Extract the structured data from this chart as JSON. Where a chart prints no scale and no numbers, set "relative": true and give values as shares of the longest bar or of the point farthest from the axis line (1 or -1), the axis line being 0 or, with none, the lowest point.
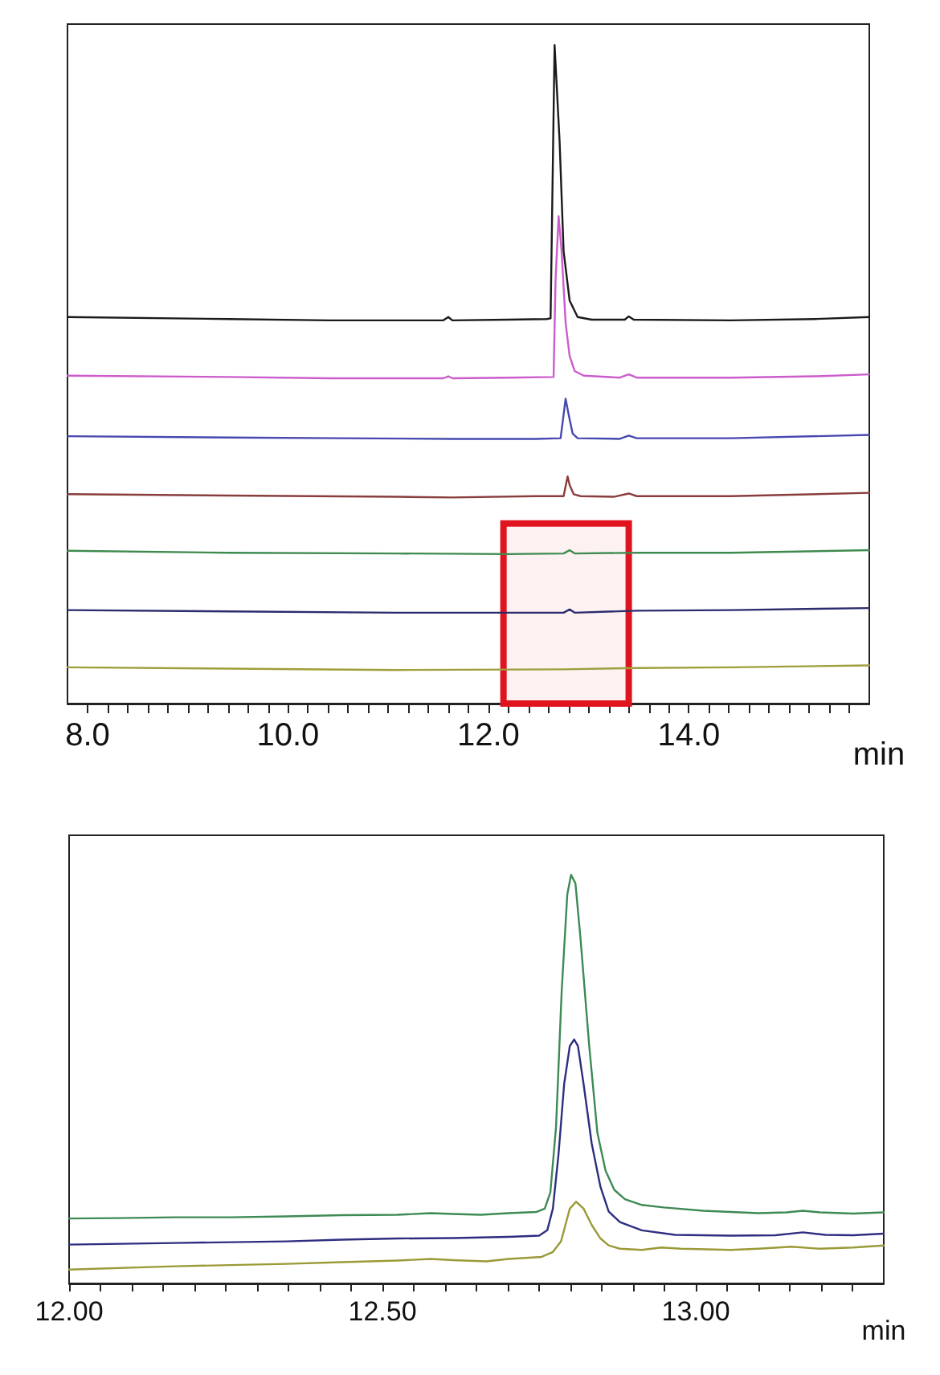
{
  "chart_data": [
    {
      "type": "line",
      "xlabel": "min",
      "relative": true,
      "tick_labels": "x",
      "marker": "none",
      "grid": false,
      "xlim": [
        7.8,
        15.8
      ],
      "xticks": [
        {
          "value": 8,
          "label": "8.0"
        },
        {
          "value": 8.2,
          "label": null
        },
        {
          "value": 8.4,
          "label": null
        },
        {
          "value": 8.6,
          "label": null
        },
        {
          "value": 8.8,
          "label": null
        },
        {
          "value": 9,
          "label": null
        },
        {
          "value": 9.2,
          "label": null
        },
        {
          "value": 9.4,
          "label": null
        },
        {
          "value": 9.6,
          "label": null
        },
        {
          "value": 9.8,
          "label": null
        },
        {
          "value": 10,
          "label": "10.0"
        },
        {
          "value": 10.2,
          "label": null
        },
        {
          "value": 10.4,
          "label": null
        },
        {
          "value": 10.6,
          "label": null
        },
        {
          "value": 10.8,
          "label": null
        },
        {
          "value": 11,
          "label": null
        },
        {
          "value": 11.2,
          "label": null
        },
        {
          "value": 11.4,
          "label": null
        },
        {
          "value": 11.6,
          "label": null
        },
        {
          "value": 11.8,
          "label": null
        },
        {
          "value": 12,
          "label": "12.0"
        },
        {
          "value": 12.2,
          "label": null
        },
        {
          "value": 12.4,
          "label": null
        },
        {
          "value": 12.6,
          "label": null
        },
        {
          "value": 12.8,
          "label": null
        },
        {
          "value": 13,
          "label": null
        },
        {
          "value": 13.2,
          "label": null
        },
        {
          "value": 13.4,
          "label": null
        },
        {
          "value": 13.6,
          "label": null
        },
        {
          "value": 13.8,
          "label": null
        },
        {
          "value": 14,
          "label": "14.0"
        },
        {
          "value": 14.2,
          "label": null
        },
        {
          "value": 14.4,
          "label": null
        },
        {
          "value": 14.6,
          "label": null
        },
        {
          "value": 14.8,
          "label": null
        },
        {
          "value": 15,
          "label": null
        },
        {
          "value": 15.2,
          "label": null
        },
        {
          "value": 15.4,
          "label": null
        },
        {
          "value": 15.6,
          "label": null
        }
      ],
      "bands": [
        {
          "axis": "x",
          "from": 12.15,
          "to": 13.4,
          "color": "#e0141e"
        }
      ],
      "series": [
        {
          "color": "#1a1a1a",
          "x": [
            7.8,
            9.41,
            10.41,
            11.36,
            11.55,
            11.6,
            11.64,
            12.19,
            12.58,
            12.62,
            12.66,
            12.71,
            12.75,
            12.81,
            12.89,
            13.03,
            13.36,
            13.4,
            13.45,
            14.42,
            15.26,
            15.8
          ],
          "values": [
            0.587,
            0.584,
            0.582,
            0.582,
            0.582,
            0.587,
            0.582,
            0.583,
            0.584,
            0.585,
            1,
            0.854,
            0.687,
            0.612,
            0.587,
            0.583,
            0.583,
            0.588,
            0.583,
            0.582,
            0.584,
            0.587
          ]
        },
        {
          "color": "#cc5ccc",
          "x": [
            7.8,
            9.41,
            10.41,
            11.55,
            11.6,
            11.64,
            12.19,
            12.65,
            12.67,
            12.7,
            12.73,
            12.77,
            12.81,
            12.86,
            12.95,
            13.31,
            13.4,
            13.48,
            14.42,
            15.26,
            15.8
          ],
          "values": [
            0.498,
            0.496,
            0.494,
            0.494,
            0.497,
            0.494,
            0.495,
            0.496,
            0.645,
            0.74,
            0.687,
            0.578,
            0.528,
            0.505,
            0.498,
            0.495,
            0.5,
            0.495,
            0.495,
            0.497,
            0.5
          ]
        },
        {
          "color": "#4848b0",
          "x": [
            7.8,
            9.41,
            10.52,
            11.64,
            12.47,
            12.72,
            12.75,
            12.77,
            12.8,
            12.84,
            12.89,
            13.31,
            13.4,
            13.48,
            14.42,
            15.8
          ],
          "values": [
            0.406,
            0.404,
            0.403,
            0.402,
            0.402,
            0.403,
            0.439,
            0.463,
            0.439,
            0.41,
            0.403,
            0.402,
            0.407,
            0.403,
            0.403,
            0.408
          ]
        },
        {
          "color": "#8a3d3d",
          "x": [
            7.8,
            9.41,
            11.08,
            11.64,
            12.47,
            12.75,
            12.77,
            12.79,
            12.81,
            12.85,
            12.92,
            13.25,
            13.4,
            13.48,
            14.42,
            15.8
          ],
          "values": [
            0.318,
            0.316,
            0.314,
            0.313,
            0.315,
            0.315,
            0.33,
            0.345,
            0.332,
            0.318,
            0.315,
            0.314,
            0.319,
            0.315,
            0.315,
            0.32
          ]
        },
        {
          "color": "#3f8a4f",
          "x": [
            7.8,
            9.41,
            11.08,
            12.19,
            12.75,
            12.81,
            12.86,
            13.48,
            14.42,
            15.8
          ],
          "values": [
            0.232,
            0.229,
            0.228,
            0.227,
            0.228,
            0.233,
            0.228,
            0.229,
            0.229,
            0.233
          ]
        },
        {
          "color": "#2b2b6e",
          "x": [
            7.8,
            9.41,
            11.08,
            12.19,
            12.75,
            12.81,
            12.86,
            13.48,
            14.42,
            15.8
          ],
          "values": [
            0.142,
            0.14,
            0.138,
            0.138,
            0.138,
            0.143,
            0.138,
            0.141,
            0.142,
            0.145
          ]
        },
        {
          "color": "#9e9e3a",
          "x": [
            7.8,
            9.41,
            11.08,
            12.75,
            13.48,
            14.42,
            15.8
          ],
          "values": [
            0.055,
            0.053,
            0.051,
            0.052,
            0.054,
            0.055,
            0.058
          ]
        }
      ]
    },
    {
      "type": "line",
      "xlabel": "min",
      "relative": true,
      "tick_labels": "x",
      "marker": "none",
      "grid": false,
      "xlim": [
        12,
        13.3
      ],
      "xticks": [
        {
          "value": 12,
          "label": "12.00"
        },
        {
          "value": 12.05,
          "label": null
        },
        {
          "value": 12.1,
          "label": null
        },
        {
          "value": 12.15,
          "label": null
        },
        {
          "value": 12.2,
          "label": null
        },
        {
          "value": 12.25,
          "label": null
        },
        {
          "value": 12.3,
          "label": null
        },
        {
          "value": 12.35,
          "label": null
        },
        {
          "value": 12.4,
          "label": null
        },
        {
          "value": 12.45,
          "label": null
        },
        {
          "value": 12.5,
          "label": "12.50"
        },
        {
          "value": 12.55,
          "label": null
        },
        {
          "value": 12.6,
          "label": null
        },
        {
          "value": 12.65,
          "label": null
        },
        {
          "value": 12.7,
          "label": null
        },
        {
          "value": 12.75,
          "label": null
        },
        {
          "value": 12.8,
          "label": null
        },
        {
          "value": 12.85,
          "label": null
        },
        {
          "value": 12.9,
          "label": null
        },
        {
          "value": 12.95,
          "label": null
        },
        {
          "value": 13,
          "label": "13.00"
        },
        {
          "value": 13.05,
          "label": null
        },
        {
          "value": 13.1,
          "label": null
        },
        {
          "value": 13.15,
          "label": null
        },
        {
          "value": 13.2,
          "label": null
        },
        {
          "value": 13.25,
          "label": null
        }
      ],
      "series": [
        {
          "color": "#3d8a55",
          "x": [
            12,
            12.081,
            12.169,
            12.258,
            12.347,
            12.435,
            12.524,
            12.577,
            12.613,
            12.657,
            12.701,
            12.746,
            12.759,
            12.768,
            12.777,
            12.786,
            12.795,
            12.801,
            12.808,
            12.816,
            12.83,
            12.843,
            12.856,
            12.87,
            12.887,
            12.914,
            12.949,
            13.012,
            13.1,
            13.145,
            13.171,
            13.198,
            13.251,
            13.3
          ],
          "values": [
            0.159,
            0.16,
            0.162,
            0.162,
            0.164,
            0.167,
            0.168,
            0.172,
            0.17,
            0.168,
            0.172,
            0.175,
            0.183,
            0.223,
            0.382,
            0.714,
            0.952,
            1,
            0.979,
            0.846,
            0.581,
            0.369,
            0.276,
            0.229,
            0.206,
            0.192,
            0.186,
            0.178,
            0.172,
            0.174,
            0.178,
            0.174,
            0.171,
            0.174
          ]
        },
        {
          "color": "#2e2e80",
          "x": [
            12,
            12.169,
            12.347,
            12.435,
            12.524,
            12.613,
            12.701,
            12.75,
            12.763,
            12.772,
            12.781,
            12.79,
            12.799,
            12.806,
            12.812,
            12.821,
            12.834,
            12.848,
            12.861,
            12.879,
            12.914,
            12.967,
            13.056,
            13.127,
            13.171,
            13.207,
            13.251,
            13.3
          ],
          "values": [
            0.095,
            0.099,
            0.103,
            0.107,
            0.11,
            0.111,
            0.114,
            0.117,
            0.13,
            0.183,
            0.316,
            0.488,
            0.581,
            0.597,
            0.581,
            0.488,
            0.342,
            0.236,
            0.176,
            0.15,
            0.13,
            0.119,
            0.117,
            0.118,
            0.125,
            0.119,
            0.118,
            0.122
          ]
        },
        {
          "color": "#9a9a38",
          "x": [
            12,
            12.169,
            12.258,
            12.347,
            12.435,
            12.524,
            12.577,
            12.613,
            12.666,
            12.701,
            12.754,
            12.772,
            12.785,
            12.799,
            12.809,
            12.821,
            12.834,
            12.848,
            12.861,
            12.879,
            12.914,
            12.945,
            12.976,
            13.056,
            13.1,
            13.153,
            13.198,
            13.251,
            13.3
          ],
          "values": [
            0.034,
            0.042,
            0.045,
            0.048,
            0.052,
            0.056,
            0.06,
            0.057,
            0.054,
            0.06,
            0.065,
            0.077,
            0.103,
            0.183,
            0.2,
            0.183,
            0.143,
            0.11,
            0.093,
            0.085,
            0.082,
            0.088,
            0.085,
            0.082,
            0.085,
            0.09,
            0.085,
            0.088,
            0.093
          ]
        }
      ]
    }
  ]
}
